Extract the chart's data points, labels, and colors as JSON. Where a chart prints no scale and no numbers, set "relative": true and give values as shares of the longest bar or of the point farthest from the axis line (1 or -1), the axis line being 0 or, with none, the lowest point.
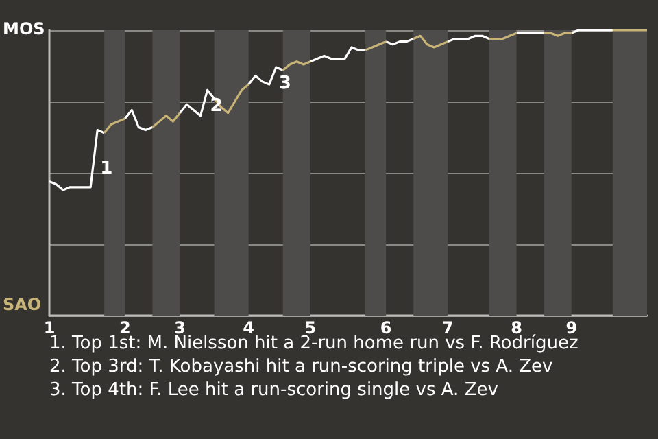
{
  "chart_data": {
    "type": "line",
    "relative": true,
    "categories": [
      "1",
      null,
      null,
      null,
      null,
      null,
      null,
      null,
      null,
      null,
      null,
      "2",
      null,
      null,
      null,
      null,
      null,
      null,
      null,
      "3",
      null,
      null,
      null,
      null,
      null,
      null,
      null,
      null,
      null,
      "4",
      null,
      null,
      null,
      null,
      null,
      null,
      null,
      null,
      "5",
      null,
      null,
      null,
      null,
      null,
      null,
      null,
      null,
      null,
      null,
      "6",
      null,
      null,
      null,
      null,
      null,
      null,
      null,
      null,
      "7",
      null,
      null,
      null,
      null,
      null,
      null,
      null,
      null,
      null,
      "8",
      null,
      null,
      null,
      null,
      null,
      null,
      null,
      "9",
      null,
      null,
      null,
      null,
      null,
      null,
      null,
      null,
      null,
      null,
      null
    ],
    "grid": "y",
    "marker": "none",
    "line_style": "solid",
    "series": [
      {
        "name": "MOS",
        "color": "#ffffff",
        "values": [
          0.47,
          0.46,
          0.44,
          0.45,
          0.45,
          0.45,
          0.45,
          0.65,
          0.64,
          null,
          null,
          0.69,
          0.72,
          0.66,
          0.65,
          0.66,
          null,
          null,
          null,
          0.71,
          0.74,
          0.72,
          0.7,
          0.79,
          0.76,
          null,
          null,
          null,
          null,
          0.81,
          0.84,
          0.82,
          0.81,
          0.87,
          0.86,
          null,
          null,
          null,
          0.89,
          0.9,
          0.91,
          0.9,
          0.9,
          0.9,
          0.94,
          0.93,
          0.93,
          null,
          null,
          0.96,
          0.95,
          0.96,
          0.96,
          0.97,
          null,
          null,
          null,
          null,
          0.96,
          0.97,
          0.97,
          0.97,
          0.98,
          0.98,
          0.97,
          null,
          null,
          null,
          0.99,
          0.99,
          0.99,
          0.99,
          0.99,
          null,
          null,
          null,
          0.99,
          1,
          1,
          1,
          1,
          1,
          1,
          null,
          null,
          null,
          null,
          null
        ]
      },
      {
        "name": "SAO",
        "color": "#c9b477",
        "values": [
          null,
          null,
          null,
          null,
          null,
          null,
          null,
          null,
          0.64,
          0.67,
          0.68,
          0.69,
          null,
          null,
          null,
          0.66,
          0.68,
          0.7,
          0.68,
          0.71,
          null,
          null,
          null,
          null,
          0.76,
          0.73,
          0.71,
          0.75,
          0.79,
          0.81,
          null,
          null,
          null,
          null,
          0.86,
          0.88,
          0.89,
          0.88,
          0.89,
          null,
          null,
          null,
          null,
          null,
          null,
          null,
          0.93,
          0.94,
          0.95,
          0.96,
          null,
          null,
          null,
          0.97,
          0.98,
          0.95,
          0.94,
          0.95,
          0.96,
          null,
          null,
          null,
          null,
          null,
          0.97,
          0.97,
          0.97,
          0.98,
          0.99,
          null,
          null,
          null,
          0.99,
          0.99,
          0.98,
          0.99,
          0.99,
          null,
          null,
          null,
          null,
          null,
          1,
          1,
          1,
          1,
          1,
          1
        ]
      }
    ],
    "annotations": [
      {
        "text": "1",
        "y": 0.65
      },
      {
        "text": "2",
        "y": 0.79
      },
      {
        "text": "3",
        "y": 0.87
      },
      "1. Top 1st: M. Nielsson hit a 2-run home run vs F. Rodríguez",
      "2. Top 3rd: T. Kobayashi hit a run-scoring triple vs A. Zev",
      "3. Top 4th: F. Lee hit a run-scoring single vs A. Zev"
    ]
  }
}
